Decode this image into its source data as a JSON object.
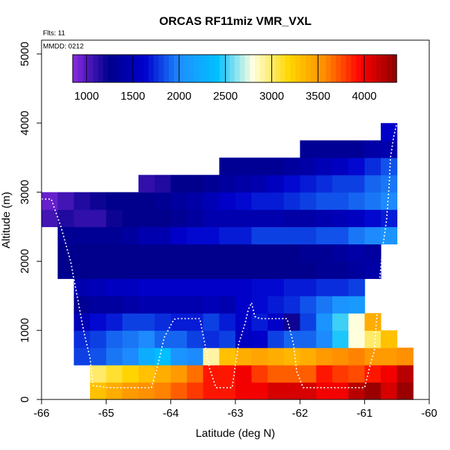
{
  "chart_data": {
    "type": "heatmap",
    "title": "ORCAS RF11miz VMR_VXL",
    "annotations": [
      "Flts: 11",
      "MMDD: 0212"
    ],
    "xlabel": "Latitude (deg N)",
    "ylabel": "Altitude (m)",
    "xlim": [
      -66,
      -60
    ],
    "ylim": [
      0,
      5200
    ],
    "x_ticks": [
      "-66",
      "-65",
      "-64",
      "-63",
      "-62",
      "-61",
      "-60"
    ],
    "y_ticks": [
      "0",
      "1000",
      "2000",
      "3000",
      "4000",
      "5000"
    ],
    "colorbar": {
      "range": [
        850,
        4350
      ],
      "ticks": [
        "1000",
        "1500",
        "2000",
        "2500",
        "3000",
        "3500",
        "4000"
      ],
      "colors": [
        "#8a2be2",
        "#00008b",
        "#0000cd",
        "#1e90ff",
        "#00bfff",
        "#ffffe0",
        "#ffd700",
        "#ff8c00",
        "#ff0000",
        "#8b0000"
      ]
    },
    "lat_bin_width": 0.25,
    "alt_bin_height": 250,
    "rows": [
      {
        "alt_bottom": 0,
        "lat_start": -65.25,
        "values": [
          3300,
          3400,
          3500,
          3550,
          3600,
          3700,
          3800,
          3900,
          3900,
          4000,
          4000,
          4100,
          4100,
          4100,
          4000,
          4000,
          4200,
          4300,
          4100,
          4300
        ]
      },
      {
        "alt_bottom": 250,
        "lat_start": -65.25,
        "values": [
          3000,
          3100,
          3200,
          3300,
          3400,
          3500,
          3650,
          3900,
          3900,
          4000,
          3800,
          3700,
          3700,
          3700,
          3900,
          3800,
          3750,
          3900,
          4000,
          4200
        ]
      },
      {
        "alt_bottom": 500,
        "lat_start": -65.5,
        "values": [
          1800,
          1850,
          1950,
          2000,
          2250,
          2400,
          2050,
          2000,
          2900,
          3300,
          3400,
          3450,
          3400,
          3350,
          3400,
          3500,
          3550,
          3600,
          3500,
          3500,
          3550
        ]
      },
      {
        "alt_bottom": 750,
        "lat_start": -65.5,
        "values": [
          1750,
          1800,
          1900,
          1950,
          2000,
          1900,
          1900,
          1800,
          1750,
          1800,
          1550,
          1600,
          1800,
          1900,
          1900,
          2000,
          2450,
          2800,
          3000,
          3300
        ]
      },
      {
        "alt_bottom": 1000,
        "lat_start": -65.5,
        "values": [
          1500,
          1650,
          1700,
          1800,
          1800,
          1750,
          1700,
          1700,
          1800,
          1700,
          1600,
          1700,
          1600,
          1200,
          1800,
          2050,
          2500,
          2800,
          3400
        ]
      },
      {
        "alt_bottom": 1250,
        "lat_start": -65.5,
        "values": [
          1300,
          1350,
          1350,
          1400,
          1450,
          1450,
          1450,
          1450,
          1500,
          1450,
          1600,
          1650,
          1700,
          1750,
          1850,
          1950,
          2050,
          2100
        ]
      },
      {
        "alt_bottom": 1500,
        "lat_start": -65.5,
        "values": [
          1450,
          1500,
          1550,
          1550,
          1600,
          1600,
          1600,
          1600,
          1600,
          1600,
          1600,
          1650,
          1650,
          1700,
          1700,
          1750,
          1750,
          1800
        ]
      },
      {
        "alt_bottom": 1750,
        "lat_start": -65.75,
        "values": [
          1250,
          1250,
          1250,
          1250,
          1250,
          1250,
          1250,
          1250,
          1250,
          1250,
          1250,
          1250,
          1250,
          1250,
          1250,
          1250,
          1300,
          1300,
          1350,
          1400
        ]
      },
      {
        "alt_bottom": 2000,
        "lat_start": -65.75,
        "values": [
          1250,
          1250,
          1250,
          1250,
          1250,
          1250,
          1250,
          1250,
          1250,
          1250,
          1250,
          1250,
          1250,
          1250,
          1250,
          1300,
          1300,
          1350,
          1400,
          1350
        ]
      },
      {
        "alt_bottom": 2250,
        "lat_start": -65.75,
        "values": [
          1300,
          1300,
          1300,
          1300,
          1350,
          1450,
          1450,
          1600,
          1650,
          1650,
          1700,
          1700,
          1800,
          1800,
          1800,
          1800,
          1850,
          1850,
          1950,
          2000,
          2050
        ]
      },
      {
        "alt_bottom": 2500,
        "lat_start": -66.0,
        "values": [
          1050,
          1150,
          1100,
          1100,
          1200,
          1250,
          1250,
          1250,
          1300,
          1350,
          1450,
          1450,
          1450,
          1450,
          1450,
          1400,
          1400,
          1450,
          1500,
          1550,
          1650,
          1700
        ]
      },
      {
        "alt_bottom": 2750,
        "lat_start": -66.0,
        "values": [
          950,
          1050,
          1150,
          1200,
          1250,
          1250,
          1250,
          1300,
          1350,
          1400,
          1500,
          1600,
          1650,
          1700,
          1700,
          1750,
          1800,
          1850,
          1850,
          1900,
          1950,
          2000
        ]
      },
      {
        "alt_bottom": 3000,
        "lat_start": -64.5,
        "values": [
          1100,
          1150,
          1250,
          1250,
          1300,
          1350,
          1400,
          1450,
          1550,
          1650,
          1700,
          1750,
          1800,
          1800,
          1900,
          1950
        ]
      },
      {
        "alt_bottom": 3250,
        "lat_start": -63.25,
        "values": [
          1300,
          1300,
          1300,
          1300,
          1350,
          1400,
          1500,
          1550,
          1650,
          1750,
          1850
        ]
      },
      {
        "alt_bottom": 3500,
        "lat_start": -62.0,
        "values": [
          1300,
          1300,
          1300,
          1300,
          1400,
          1450
        ]
      },
      {
        "alt_bottom": 3750,
        "lat_start": -60.75,
        "values": [
          1600
        ]
      }
    ],
    "flight_track": {
      "lat": [
        -66.0,
        -65.85,
        -65.7,
        -65.55,
        -65.45,
        -65.35,
        -65.25,
        -65.2,
        -64.95,
        -64.6,
        -64.3,
        -64.2,
        -64.1,
        -63.95,
        -63.9,
        -63.7,
        -63.55,
        -63.45,
        -63.4,
        -63.3,
        -63.1,
        -63.05,
        -63.0,
        -62.95,
        -62.85,
        -62.8,
        -62.75,
        -62.7,
        -62.65,
        -62.6,
        -62.35,
        -62.2,
        -62.1,
        -62.05,
        -61.95,
        -61.85,
        -61.75,
        -61.6,
        -61.3,
        -61.0,
        -60.9,
        -60.85,
        -60.82,
        -60.78,
        -60.72,
        -60.66,
        -60.62,
        -60.6,
        -60.55,
        -60.5
      ],
      "alt": [
        2900,
        2900,
        2500,
        2000,
        1500,
        1000,
        600,
        200,
        170,
        170,
        170,
        500,
        900,
        1160,
        1170,
        1170,
        1170,
        700,
        450,
        170,
        170,
        170,
        500,
        800,
        1100,
        1300,
        1400,
        1200,
        1180,
        1170,
        1170,
        1170,
        800,
        400,
        170,
        170,
        170,
        170,
        170,
        170,
        550,
        700,
        1100,
        1600,
        2200,
        2600,
        3100,
        3500,
        3800,
        4000
      ]
    }
  }
}
